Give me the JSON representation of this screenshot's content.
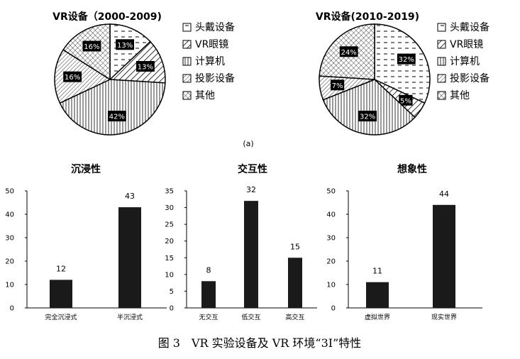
{
  "figure_label": "(a)",
  "caption": "图 3　VR 实验设备及 VR 环境“3I”特性",
  "colors": {
    "bar": "#1a1a1a",
    "stroke": "#000000",
    "background": "#ffffff"
  },
  "pattern_icons": [
    "dash-pattern",
    "diagonal-hatch-pattern",
    "vertical-line-pattern",
    "diagonal-fine-pattern",
    "crosshatch-pattern"
  ],
  "chart_data": [
    {
      "type": "pie",
      "title": "VR设备（2000-2009)",
      "categories": [
        "头戴设备",
        "VR眼镜",
        "计算机",
        "投影设备",
        "其他"
      ],
      "values": [
        13,
        13,
        42,
        16,
        16
      ],
      "labels": [
        "13%",
        "13%",
        "42%",
        "16%",
        "16%"
      ],
      "legend": "right"
    },
    {
      "type": "pie",
      "title": "VR设备(2010-2019)",
      "categories": [
        "头戴设备",
        "VR眼镜",
        "计算机",
        "投影设备",
        "其他"
      ],
      "values": [
        32,
        5,
        32,
        7,
        24
      ],
      "labels": [
        "32%",
        "5%",
        "32%",
        "7%",
        "24%"
      ],
      "legend": "right"
    },
    {
      "type": "bar",
      "title": "沉浸性",
      "categories": [
        "完全沉浸式",
        "半沉浸式"
      ],
      "values": [
        12,
        43
      ],
      "ylim": [
        0,
        50
      ],
      "yticks": [
        0,
        10,
        20,
        30,
        40,
        50
      ],
      "grid": false
    },
    {
      "type": "bar",
      "title": "交互性",
      "categories": [
        "无交互",
        "低交互",
        "高交互"
      ],
      "values": [
        8,
        32,
        15
      ],
      "ylim": [
        0,
        35
      ],
      "yticks": [
        0,
        5,
        10,
        15,
        20,
        25,
        30,
        35
      ],
      "grid": false
    },
    {
      "type": "bar",
      "title": "想象性",
      "categories": [
        "虚拟世界",
        "现实世界"
      ],
      "values": [
        11,
        44
      ],
      "ylim": [
        0,
        50
      ],
      "yticks": [
        0,
        10,
        20,
        30,
        40,
        50
      ],
      "grid": false
    }
  ]
}
